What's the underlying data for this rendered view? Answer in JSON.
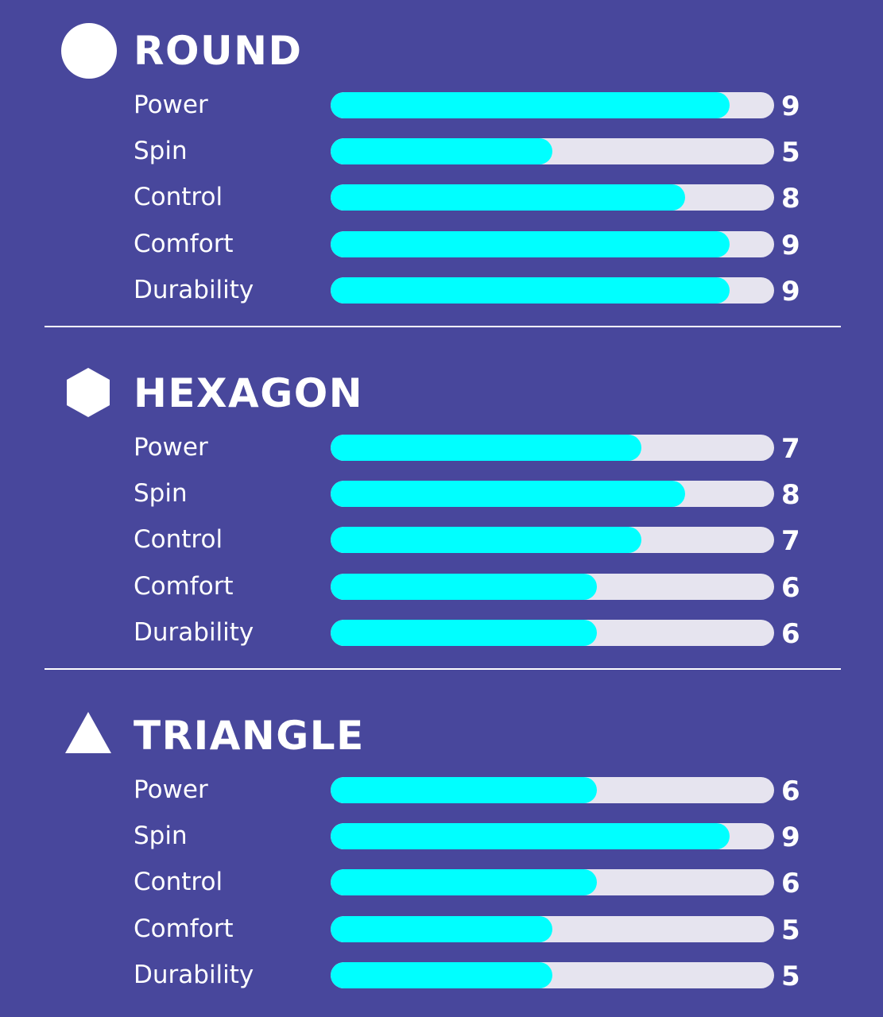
{
  "chart_data": {
    "type": "bar",
    "orientation": "horizontal",
    "xlim": [
      0,
      10
    ],
    "colors": {
      "background": "#48479c",
      "fill": "#00ffff",
      "track": "#e6e4ef",
      "text": "#ffffff"
    },
    "categories": [
      "Power",
      "Spin",
      "Control",
      "Comfort",
      "Durability"
    ],
    "groups": [
      {
        "title": "ROUND",
        "icon": "circle-icon",
        "values": [
          9,
          5,
          8,
          9,
          9
        ]
      },
      {
        "title": "HEXAGON",
        "icon": "hexagon-icon",
        "values": [
          7,
          8,
          7,
          6,
          6
        ]
      },
      {
        "title": "TRIANGLE",
        "icon": "triangle-icon",
        "values": [
          6,
          9,
          6,
          5,
          5
        ]
      }
    ]
  }
}
